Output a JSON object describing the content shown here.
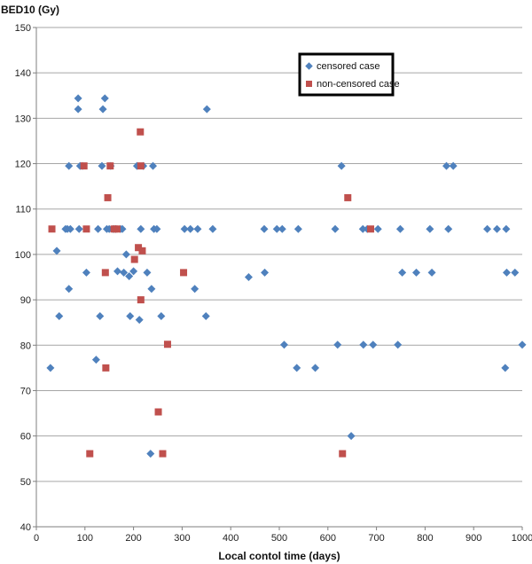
{
  "chart_data": {
    "type": "scatter",
    "title": "",
    "xlabel": "Local contol time (days)",
    "ylabel": "BED10 (Gy)",
    "xlim": [
      0,
      1000
    ],
    "ylim": [
      40,
      150
    ],
    "xticks": [
      0,
      100,
      200,
      300,
      400,
      500,
      600,
      700,
      800,
      900,
      1000
    ],
    "yticks": [
      40,
      50,
      60,
      70,
      80,
      90,
      100,
      110,
      120,
      130,
      140,
      150
    ],
    "grid": "horizontal",
    "legend_position": "top-right",
    "series": [
      {
        "name": "censored case",
        "color": "#4f81bd",
        "marker": "diamond",
        "points": [
          [
            29,
            75
          ],
          [
            42,
            100.8
          ],
          [
            47,
            86.4
          ],
          [
            60,
            105.6
          ],
          [
            64,
            105.6
          ],
          [
            67,
            92.4
          ],
          [
            67,
            119.5
          ],
          [
            70,
            105.6
          ],
          [
            86,
            134.4
          ],
          [
            86,
            132
          ],
          [
            88,
            105.6
          ],
          [
            90,
            119.5
          ],
          [
            95,
            119.5
          ],
          [
            103,
            96
          ],
          [
            123,
            76.8
          ],
          [
            127,
            105.6
          ],
          [
            131,
            86.4
          ],
          [
            135,
            119.5
          ],
          [
            137,
            132
          ],
          [
            141,
            134.4
          ],
          [
            145,
            105.6
          ],
          [
            150,
            105.6
          ],
          [
            153,
            119.5
          ],
          [
            158,
            105.6
          ],
          [
            163,
            105.6
          ],
          [
            167,
            96.3
          ],
          [
            173,
            105.6
          ],
          [
            177,
            105.6
          ],
          [
            180,
            96
          ],
          [
            185,
            100
          ],
          [
            191,
            95.2
          ],
          [
            193,
            86.4
          ],
          [
            200,
            96.3
          ],
          [
            207,
            119.5
          ],
          [
            212,
            85.6
          ],
          [
            215,
            105.6
          ],
          [
            220,
            119.5
          ],
          [
            228,
            96
          ],
          [
            235,
            56.1
          ],
          [
            237,
            92.4
          ],
          [
            240,
            119.5
          ],
          [
            242,
            105.6
          ],
          [
            248,
            105.6
          ],
          [
            257,
            86.4
          ],
          [
            305,
            105.6
          ],
          [
            317,
            105.6
          ],
          [
            326,
            92.4
          ],
          [
            332,
            105.6
          ],
          [
            349,
            86.4
          ],
          [
            351,
            132
          ],
          [
            363,
            105.6
          ],
          [
            437,
            95
          ],
          [
            469,
            105.6
          ],
          [
            470,
            96
          ],
          [
            495,
            105.6
          ],
          [
            506,
            105.6
          ],
          [
            510,
            80.1
          ],
          [
            536,
            75
          ],
          [
            539,
            105.6
          ],
          [
            574,
            75
          ],
          [
            615,
            105.6
          ],
          [
            620,
            80.1
          ],
          [
            628,
            119.5
          ],
          [
            648,
            60
          ],
          [
            672,
            105.6
          ],
          [
            673,
            80.1
          ],
          [
            681,
            105.6
          ],
          [
            693,
            80.1
          ],
          [
            703,
            105.6
          ],
          [
            744,
            80.1
          ],
          [
            749,
            105.6
          ],
          [
            753,
            96
          ],
          [
            782,
            96
          ],
          [
            810,
            105.6
          ],
          [
            814,
            96
          ],
          [
            844,
            119.5
          ],
          [
            848,
            105.6
          ],
          [
            858,
            119.5
          ],
          [
            928,
            105.6
          ],
          [
            948,
            105.6
          ],
          [
            965,
            75
          ],
          [
            967,
            105.6
          ],
          [
            968,
            96
          ],
          [
            985,
            96
          ],
          [
            1000,
            80.1
          ]
        ]
      },
      {
        "name": "non-censored case",
        "color": "#c0504d",
        "marker": "square",
        "points": [
          [
            32,
            105.6
          ],
          [
            98,
            119.5
          ],
          [
            103,
            105.6
          ],
          [
            110,
            56.1
          ],
          [
            142,
            96
          ],
          [
            143,
            75
          ],
          [
            147,
            112.5
          ],
          [
            152,
            119.5
          ],
          [
            160,
            105.6
          ],
          [
            166,
            105.6
          ],
          [
            202,
            98.9
          ],
          [
            210,
            101.5
          ],
          [
            214,
            127
          ],
          [
            215,
            119.5
          ],
          [
            215,
            90
          ],
          [
            218,
            100.8
          ],
          [
            251,
            65.3
          ],
          [
            260,
            56.1
          ],
          [
            270,
            80.2
          ],
          [
            303,
            96
          ],
          [
            630,
            56.1
          ],
          [
            641,
            112.5
          ],
          [
            688,
            105.6
          ]
        ]
      }
    ]
  }
}
